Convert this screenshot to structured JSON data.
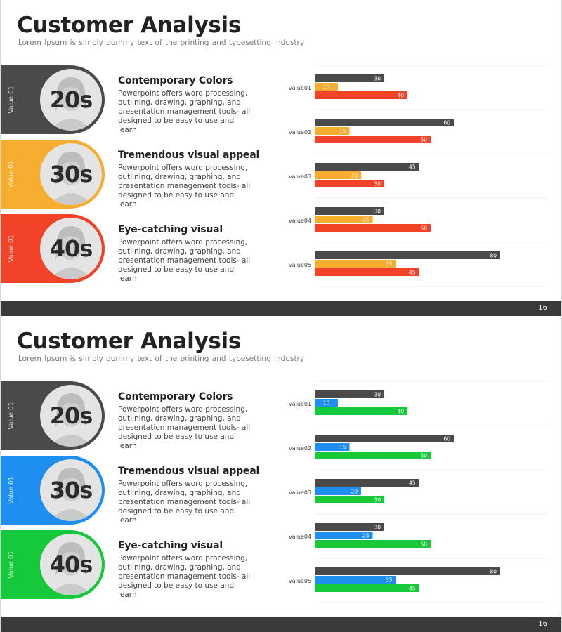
{
  "slides": [
    {
      "title": "Customer Analysis",
      "subtitle": "Lorem Ipsum is simply dummy  text of the printing and typesetting industry",
      "page_number": "16",
      "segments": [
        {
          "side_label": "Value 01",
          "age": "20s",
          "heading": "Contemporary Colors",
          "body": "Powerpoint offers word processing, outlining, drawing, graphing, and presentation management tools- all designed to be easy to use and learn",
          "color": "#4a4a4a"
        },
        {
          "side_label": "Value 01",
          "age": "30s",
          "heading": "Tremendous visual appeal",
          "body": "Powerpoint offers word processing, outlining, drawing, graphing, and presentation management tools- all designed to be easy to use and learn",
          "color": "#f7ad2f"
        },
        {
          "side_label": "Value 01",
          "age": "40s",
          "heading": "Eye-catching visual",
          "body": "Powerpoint offers word processing, outlining, drawing, graphing, and presentation management tools- all designed to be easy to use and learn",
          "color": "#f24227"
        }
      ],
      "chart_data": {
        "type": "bar",
        "orientation": "horizontal",
        "categories": [
          "value01",
          "value02",
          "value03",
          "value04",
          "value05"
        ],
        "series": [
          {
            "values": [
              30,
              60,
              45,
              30,
              80
            ],
            "color": "#4a4a4a"
          },
          {
            "values": [
              10,
              15,
              20,
              25,
              35
            ],
            "color": "#f7ad2f"
          },
          {
            "values": [
              40,
              50,
              30,
              50,
              45
            ],
            "color": "#f24227"
          }
        ],
        "xlim": [
          0,
          100
        ],
        "grid": true,
        "legend": "none"
      }
    },
    {
      "title": "Customer Analysis",
      "subtitle": "Lorem Ipsum is simply dummy  text of the printing and typesetting industry",
      "page_number": "16",
      "segments": [
        {
          "side_label": "Value 01",
          "age": "20s",
          "heading": "Contemporary Colors",
          "body": "Powerpoint offers word processing, outlining, drawing, graphing, and presentation management tools- all designed to be easy to use and learn",
          "color": "#4a4a4a"
        },
        {
          "side_label": "Value 01",
          "age": "30s",
          "heading": "Tremendous visual appeal",
          "body": "Powerpoint offers word processing, outlining, drawing, graphing, and presentation management tools- all designed to be easy to use and learn",
          "color": "#1e8ff0"
        },
        {
          "side_label": "Value 01",
          "age": "40s",
          "heading": "Eye-catching visual",
          "body": "Powerpoint offers word processing, outlining, drawing, graphing, and presentation management tools- all designed to be easy to use and learn",
          "color": "#16c93a"
        }
      ],
      "chart_data": {
        "type": "bar",
        "orientation": "horizontal",
        "categories": [
          "value01",
          "value02",
          "value03",
          "value04",
          "value05"
        ],
        "series": [
          {
            "values": [
              30,
              60,
              45,
              30,
              80
            ],
            "color": "#4a4a4a"
          },
          {
            "values": [
              10,
              15,
              20,
              25,
              35
            ],
            "color": "#1e8ff0"
          },
          {
            "values": [
              40,
              50,
              30,
              50,
              45
            ],
            "color": "#16c93a"
          }
        ],
        "xlim": [
          0,
          100
        ],
        "grid": true,
        "legend": "none"
      }
    }
  ]
}
